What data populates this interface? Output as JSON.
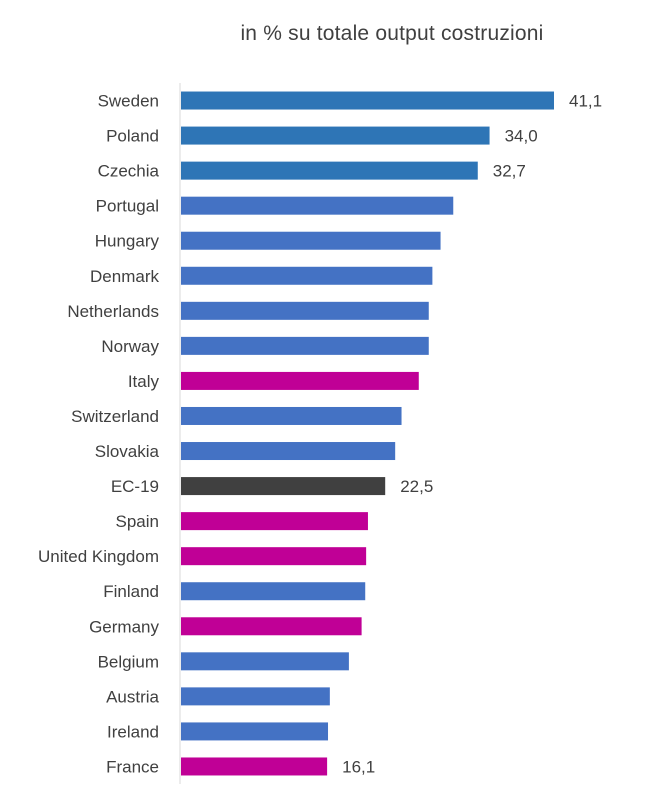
{
  "chart_data": {
    "type": "bar",
    "orientation": "horizontal",
    "title": "in % su totale output costruzioni",
    "xlabel": "",
    "ylabel": "",
    "xlim": [
      0,
      41.1
    ],
    "grid": false,
    "categories": [
      "Sweden",
      "Poland",
      "Czechia",
      "Portugal",
      "Hungary",
      "Denmark",
      "Netherlands",
      "Norway",
      "Italy",
      "Switzerland",
      "Slovakia",
      "EC-19",
      "Spain",
      "United Kingdom",
      "Finland",
      "Germany",
      "Belgium",
      "Austria",
      "Ireland",
      "France"
    ],
    "values": [
      41.1,
      34.0,
      32.7,
      30.0,
      28.6,
      27.7,
      27.3,
      27.3,
      26.2,
      24.3,
      23.6,
      22.5,
      20.6,
      20.4,
      20.3,
      19.9,
      18.5,
      16.4,
      16.2,
      16.1
    ],
    "value_labels": [
      "41,1",
      "34,0",
      "32,7",
      "",
      "",
      "",
      "",
      "",
      "",
      "",
      "",
      "22,5",
      "",
      "",
      "",
      "",
      "",
      "",
      "",
      "16,1"
    ],
    "colors": [
      "#2E75B6",
      "#2E75B6",
      "#2E75B6",
      "#4472C4",
      "#4472C4",
      "#4472C4",
      "#4472C4",
      "#4472C4",
      "#C00096",
      "#4472C4",
      "#4472C4",
      "#404040",
      "#C00096",
      "#C00096",
      "#4472C4",
      "#C00096",
      "#4472C4",
      "#4472C4",
      "#4472C4",
      "#C00096"
    ],
    "axis_color": "#D9D9D9"
  }
}
